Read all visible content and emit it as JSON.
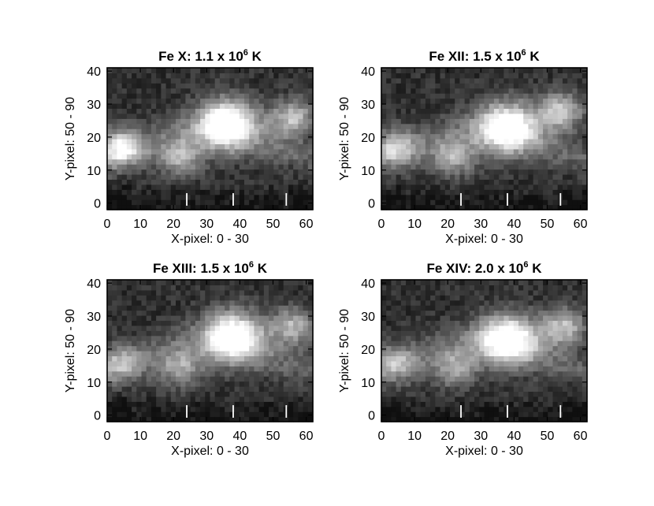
{
  "chart_data": [
    {
      "type": "heatmap",
      "title": "Fe X: 1.1 x 10",
      "title_exponent": "6",
      "title_unit": "K",
      "xlabel": "X-pixel: 0 - 30",
      "ylabel": "Y-pixel: 50 - 90",
      "xlim": [
        0,
        62
      ],
      "ylim": [
        -2,
        41
      ],
      "xticks": [
        0,
        10,
        20,
        30,
        40,
        50,
        60
      ],
      "yticks": [
        0,
        10,
        20,
        30,
        40
      ],
      "markers_x": [
        24,
        38,
        54
      ],
      "colormap": "grayscale",
      "bright_features": [
        {
          "x": 36,
          "y": 24,
          "intensity": 1.0
        },
        {
          "x": 4,
          "y": 17,
          "intensity": 0.75
        },
        {
          "x": 56,
          "y": 26,
          "intensity": 0.6
        },
        {
          "x": 22,
          "y": 14,
          "intensity": 0.5
        }
      ]
    },
    {
      "type": "heatmap",
      "title": "Fe XII: 1.5 x 10",
      "title_exponent": "6",
      "title_unit": "K",
      "xlabel": "X-pixel: 0 - 30",
      "ylabel": "Y-pixel: 50 - 90",
      "xlim": [
        0,
        62
      ],
      "ylim": [
        -2,
        41
      ],
      "xticks": [
        0,
        10,
        20,
        30,
        40,
        50,
        60
      ],
      "yticks": [
        0,
        10,
        20,
        30,
        40
      ],
      "markers_x": [
        24,
        38,
        54
      ],
      "colormap": "grayscale",
      "bright_features": [
        {
          "x": 38,
          "y": 23,
          "intensity": 1.0
        },
        {
          "x": 4,
          "y": 17,
          "intensity": 0.55
        },
        {
          "x": 54,
          "y": 28,
          "intensity": 0.65
        },
        {
          "x": 22,
          "y": 14,
          "intensity": 0.5
        }
      ]
    },
    {
      "type": "heatmap",
      "title": "Fe XIII: 1.5 x 10",
      "title_exponent": "6",
      "title_unit": "K",
      "xlabel": "X-pixel: 0 - 30",
      "ylabel": "Y-pixel: 50 - 90",
      "xlim": [
        0,
        62
      ],
      "ylim": [
        -2,
        41
      ],
      "xticks": [
        0,
        10,
        20,
        30,
        40,
        50,
        60
      ],
      "yticks": [
        0,
        10,
        20,
        30,
        40
      ],
      "markers_x": [
        24,
        38,
        54
      ],
      "colormap": "grayscale",
      "bright_features": [
        {
          "x": 38,
          "y": 24,
          "intensity": 1.0
        },
        {
          "x": 4,
          "y": 16,
          "intensity": 0.45
        },
        {
          "x": 56,
          "y": 27,
          "intensity": 0.55
        },
        {
          "x": 22,
          "y": 14,
          "intensity": 0.45
        }
      ]
    },
    {
      "type": "heatmap",
      "title": "Fe XIV: 2.0 x 10",
      "title_exponent": "6",
      "title_unit": "K",
      "xlabel": "X-pixel: 0 - 30",
      "ylabel": "Y-pixel: 50 - 90",
      "xlim": [
        0,
        62
      ],
      "ylim": [
        -2,
        41
      ],
      "xticks": [
        0,
        10,
        20,
        30,
        40,
        50,
        60
      ],
      "yticks": [
        0,
        10,
        20,
        30,
        40
      ],
      "markers_x": [
        24,
        38,
        54
      ],
      "colormap": "grayscale",
      "bright_features": [
        {
          "x": 38,
          "y": 23,
          "intensity": 1.0
        },
        {
          "x": 4,
          "y": 16,
          "intensity": 0.45
        },
        {
          "x": 55,
          "y": 27,
          "intensity": 0.6
        },
        {
          "x": 22,
          "y": 14,
          "intensity": 0.45
        }
      ]
    }
  ]
}
